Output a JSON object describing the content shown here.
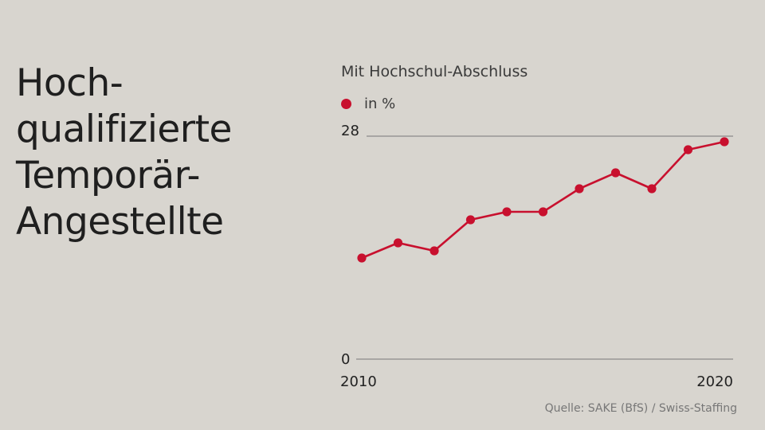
{
  "headline": {
    "lines": [
      "Hoch-",
      "qualifizierte",
      "Temporär-",
      "Angestellte"
    ]
  },
  "chart_title": "Mit Hochschul-Abschluss",
  "legend": {
    "label": "in %",
    "color": "#c8102e"
  },
  "source": "Quelle: SAKE (BfS) / Swiss-Staffing",
  "chart_data": {
    "type": "line",
    "title": "Mit Hochschul-Abschluss",
    "x": [
      2010,
      2011,
      2012,
      2013,
      2014,
      2015,
      2016,
      2017,
      2018,
      2019,
      2020
    ],
    "series": [
      {
        "name": "in %",
        "values": [
          12.7,
          14.6,
          13.6,
          17.5,
          18.5,
          18.5,
          21.4,
          23.4,
          21.4,
          26.3,
          27.3
        ],
        "color": "#c8102e"
      }
    ],
    "ylim": [
      0,
      28
    ],
    "xlim": [
      2010,
      2020
    ],
    "y_ticks": [
      "0",
      "28"
    ],
    "x_ticks": [
      "2010",
      "2020"
    ],
    "grid": false
  }
}
